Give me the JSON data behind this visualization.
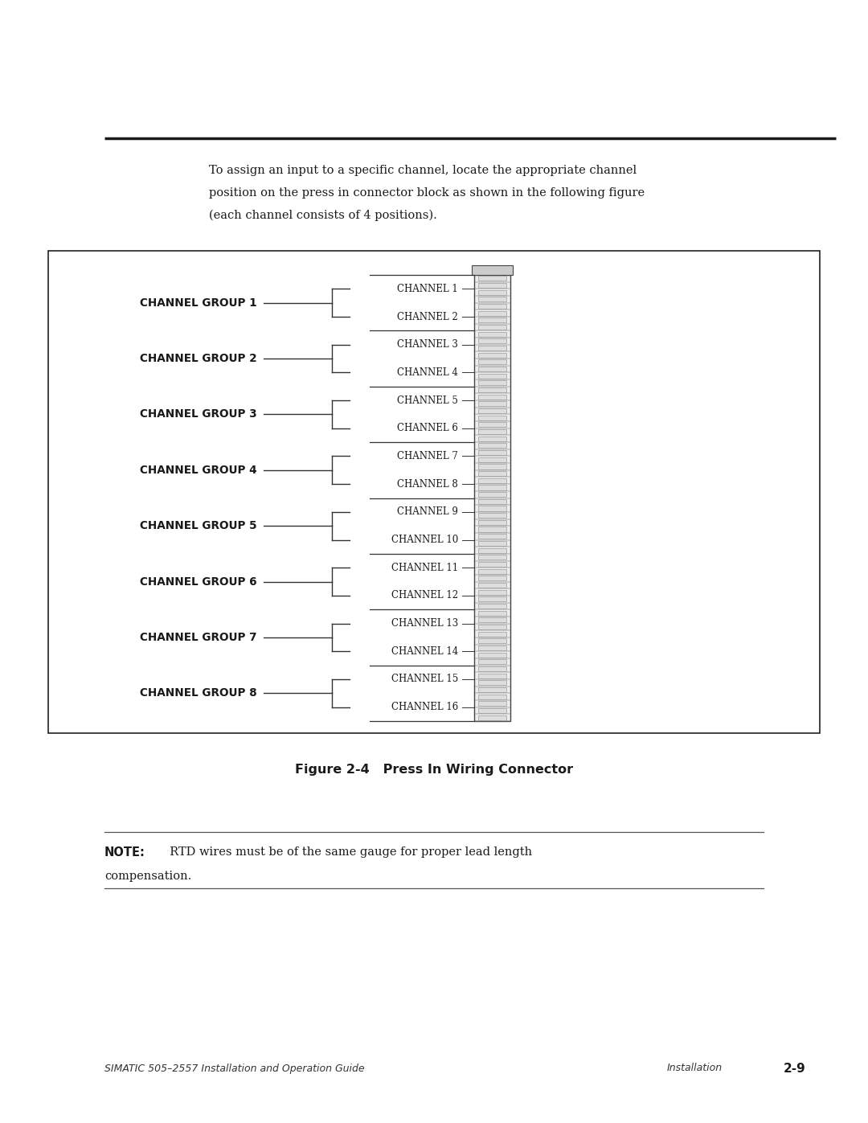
{
  "page_width": 10.8,
  "page_height": 13.97,
  "bg_color": "#ffffff",
  "channel_groups": [
    "CHANNEL GROUP 1",
    "CHANNEL GROUP 2",
    "CHANNEL GROUP 3",
    "CHANNEL GROUP 4",
    "CHANNEL GROUP 5",
    "CHANNEL GROUP 6",
    "CHANNEL GROUP 7",
    "CHANNEL GROUP 8"
  ],
  "channels": [
    "CHANNEL 1",
    "CHANNEL 2",
    "CHANNEL 3",
    "CHANNEL 4",
    "CHANNEL 5",
    "CHANNEL 6",
    "CHANNEL 7",
    "CHANNEL 8",
    "CHANNEL 9",
    "CHANNEL 10",
    "CHANNEL 11",
    "CHANNEL 12",
    "CHANNEL 13",
    "CHANNEL 14",
    "CHANNEL 15",
    "CHANNEL 16"
  ],
  "intro_text_line1": "To assign an input to a specific channel, locate the appropriate channel",
  "intro_text_line2": "position on the press in connector block as shown in the following figure",
  "intro_text_line3": "(each channel consists of 4 positions).",
  "figure_caption": "Figure 2-4   Press In Wiring Connector",
  "note_bold": "NOTE:",
  "note_rest": "  RTD wires must be of the same gauge for proper lead length",
  "note_line2": "compensation.",
  "footer_left": "SIMATIC 505–2557 Installation and Operation Guide",
  "footer_right_label": "Installation",
  "footer_right_page": "2-9"
}
